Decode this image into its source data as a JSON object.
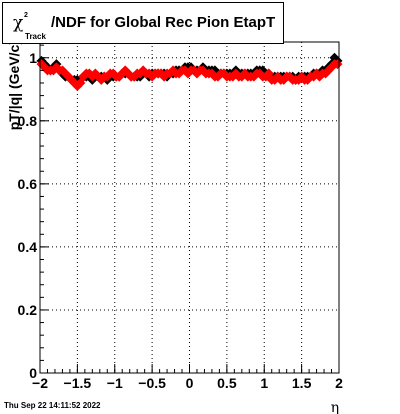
{
  "title": {
    "symbol": "χ",
    "superscript": "2",
    "subscript": "Track",
    "text": "/NDF for Global Rec Pion EtapT"
  },
  "timestamp": "Thu Sep 22 14:11:52 2022",
  "chart_data": {
    "type": "scatter",
    "xlabel": "η",
    "ylabel": "pT/|q| (GeV/c)",
    "xlim": [
      -2,
      2
    ],
    "ylim": [
      0,
      1.05
    ],
    "xticks": [
      "−2",
      "−1.5",
      "−1",
      "−0.5",
      "0",
      "0.5",
      "1",
      "1.5",
      "2"
    ],
    "xtick_values": [
      -2,
      -1.5,
      -1,
      -0.5,
      0,
      0.5,
      1,
      1.5,
      2
    ],
    "yticks": [
      "0",
      "0.2",
      "0.4",
      "0.6",
      "0.8",
      "1"
    ],
    "ytick_values": [
      0,
      0.2,
      0.4,
      0.6,
      0.8,
      1.0
    ],
    "grid": true,
    "series": [
      {
        "color": "#000000",
        "x": [
          -1.98,
          -1.94,
          -1.9,
          -1.86,
          -1.82,
          -1.78,
          -1.74,
          -1.7,
          -1.66,
          -1.62,
          -1.58,
          -1.54,
          -1.5,
          -1.46,
          -1.42,
          -1.38,
          -1.34,
          -1.3,
          -1.26,
          -1.22,
          -1.18,
          -1.14,
          -1.1,
          -1.06,
          -1.02,
          -0.98,
          -0.94,
          -0.9,
          -0.86,
          -0.82,
          -0.78,
          -0.74,
          -0.7,
          -0.66,
          -0.62,
          -0.58,
          -0.54,
          -0.5,
          -0.46,
          -0.42,
          -0.38,
          -0.34,
          -0.3,
          -0.26,
          -0.22,
          -0.18,
          -0.14,
          -0.1,
          -0.06,
          -0.02,
          0.02,
          0.06,
          0.1,
          0.14,
          0.18,
          0.22,
          0.26,
          0.3,
          0.34,
          0.38,
          0.42,
          0.46,
          0.5,
          0.54,
          0.58,
          0.62,
          0.66,
          0.7,
          0.74,
          0.78,
          0.82,
          0.86,
          0.9,
          0.94,
          0.98,
          1.02,
          1.06,
          1.1,
          1.14,
          1.18,
          1.22,
          1.26,
          1.3,
          1.34,
          1.38,
          1.42,
          1.46,
          1.5,
          1.54,
          1.58,
          1.62,
          1.66,
          1.7,
          1.74,
          1.78,
          1.82,
          1.86,
          1.9,
          1.94,
          1.98
        ],
        "y": [
          0.99,
          0.98,
          0.97,
          0.96,
          0.97,
          0.98,
          0.96,
          0.95,
          0.94,
          0.94,
          0.93,
          0.93,
          0.93,
          0.93,
          0.94,
          0.94,
          0.94,
          0.93,
          0.94,
          0.94,
          0.94,
          0.94,
          0.93,
          0.94,
          0.94,
          0.94,
          0.94,
          0.95,
          0.95,
          0.95,
          0.94,
          0.94,
          0.94,
          0.94,
          0.95,
          0.95,
          0.94,
          0.95,
          0.95,
          0.95,
          0.95,
          0.95,
          0.94,
          0.95,
          0.95,
          0.96,
          0.96,
          0.96,
          0.97,
          0.97,
          0.97,
          0.96,
          0.96,
          0.96,
          0.97,
          0.96,
          0.96,
          0.96,
          0.96,
          0.95,
          0.95,
          0.95,
          0.95,
          0.95,
          0.95,
          0.96,
          0.95,
          0.95,
          0.95,
          0.95,
          0.95,
          0.95,
          0.96,
          0.96,
          0.96,
          0.95,
          0.95,
          0.94,
          0.94,
          0.94,
          0.94,
          0.94,
          0.94,
          0.94,
          0.94,
          0.93,
          0.94,
          0.94,
          0.94,
          0.94,
          0.94,
          0.95,
          0.95,
          0.95,
          0.96,
          0.96,
          0.97,
          0.98,
          1.0,
          0.99
        ]
      },
      {
        "color": "#ff0000",
        "x": [
          -1.98,
          -1.94,
          -1.9,
          -1.86,
          -1.82,
          -1.78,
          -1.74,
          -1.7,
          -1.66,
          -1.62,
          -1.58,
          -1.54,
          -1.5,
          -1.46,
          -1.42,
          -1.38,
          -1.34,
          -1.3,
          -1.26,
          -1.22,
          -1.18,
          -1.14,
          -1.1,
          -1.06,
          -1.02,
          -0.98,
          -0.94,
          -0.9,
          -0.86,
          -0.82,
          -0.78,
          -0.74,
          -0.7,
          -0.66,
          -0.62,
          -0.58,
          -0.54,
          -0.5,
          -0.46,
          -0.42,
          -0.38,
          -0.34,
          -0.3,
          -0.26,
          -0.22,
          -0.18,
          -0.14,
          -0.1,
          -0.06,
          -0.02,
          0.02,
          0.06,
          0.1,
          0.14,
          0.18,
          0.22,
          0.26,
          0.3,
          0.34,
          0.38,
          0.42,
          0.46,
          0.5,
          0.54,
          0.58,
          0.62,
          0.66,
          0.7,
          0.74,
          0.78,
          0.82,
          0.86,
          0.9,
          0.94,
          0.98,
          1.02,
          1.06,
          1.1,
          1.14,
          1.18,
          1.22,
          1.26,
          1.3,
          1.34,
          1.38,
          1.42,
          1.46,
          1.5,
          1.54,
          1.58,
          1.62,
          1.66,
          1.7,
          1.74,
          1.78,
          1.82,
          1.86,
          1.9,
          1.94,
          1.98
        ],
        "y": [
          0.98,
          0.97,
          0.96,
          0.96,
          0.96,
          0.97,
          0.96,
          0.96,
          0.95,
          0.94,
          0.93,
          0.92,
          0.91,
          0.92,
          0.94,
          0.95,
          0.95,
          0.94,
          0.95,
          0.94,
          0.93,
          0.94,
          0.94,
          0.95,
          0.95,
          0.94,
          0.94,
          0.95,
          0.96,
          0.95,
          0.94,
          0.94,
          0.95,
          0.95,
          0.96,
          0.95,
          0.95,
          0.94,
          0.95,
          0.95,
          0.95,
          0.94,
          0.95,
          0.95,
          0.96,
          0.95,
          0.95,
          0.96,
          0.96,
          0.95,
          0.96,
          0.96,
          0.95,
          0.96,
          0.96,
          0.95,
          0.95,
          0.95,
          0.94,
          0.94,
          0.95,
          0.95,
          0.94,
          0.94,
          0.94,
          0.95,
          0.94,
          0.94,
          0.95,
          0.94,
          0.94,
          0.94,
          0.95,
          0.95,
          0.94,
          0.94,
          0.95,
          0.93,
          0.93,
          0.94,
          0.93,
          0.93,
          0.94,
          0.94,
          0.93,
          0.93,
          0.93,
          0.94,
          0.93,
          0.93,
          0.94,
          0.94,
          0.95,
          0.94,
          0.95,
          0.95,
          0.96,
          0.97,
          0.98,
          0.98
        ]
      }
    ]
  }
}
